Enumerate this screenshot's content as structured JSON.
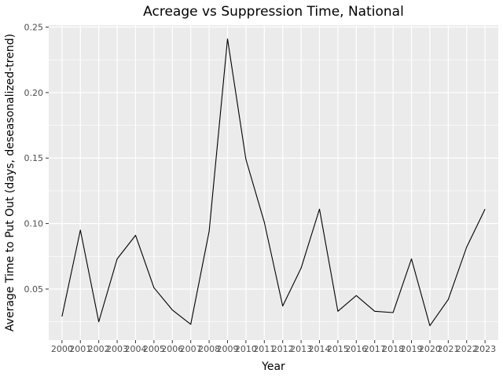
{
  "chart_data": {
    "type": "line",
    "title": "Acreage vs Suppression Time, National",
    "xlabel": "Year",
    "ylabel": "Average Time to Put Out (days, deseasonalized-trend)",
    "x": [
      2000,
      2001,
      2002,
      2003,
      2004,
      2005,
      2006,
      2007,
      2008,
      2009,
      2010,
      2011,
      2012,
      2013,
      2014,
      2015,
      2016,
      2017,
      2018,
      2019,
      2020,
      2021,
      2022,
      2023
    ],
    "x_tick_labels": [
      "2000",
      "2001",
      "2002",
      "2003",
      "2004",
      "2005",
      "2006",
      "2007",
      "2008",
      "2009",
      "2010",
      "2011",
      "2012",
      "2013",
      "2014",
      "2015",
      "2016",
      "2017",
      "2018",
      "2019",
      "2020",
      "2021",
      "2022",
      "2023"
    ],
    "y_ticks": [
      0.05,
      0.1,
      0.15,
      0.2,
      0.25
    ],
    "y_tick_labels": [
      "0.05",
      "0.10",
      "0.15",
      "0.20",
      "0.25"
    ],
    "series": [
      {
        "values": [
          0.029,
          0.095,
          0.025,
          0.073,
          0.091,
          0.051,
          0.034,
          0.023,
          0.094,
          0.241,
          0.149,
          0.101,
          0.037,
          0.066,
          0.111,
          0.033,
          0.045,
          0.033,
          0.032,
          0.073,
          0.022,
          0.042,
          0.082,
          0.111
        ],
        "color": "#000000"
      }
    ],
    "xlim": [
      1999.28,
      2023.72
    ],
    "ylim": [
      0.011,
      0.2515
    ],
    "grid": true,
    "panel_background": "#ebebeb",
    "grid_color": "#ffffff"
  }
}
